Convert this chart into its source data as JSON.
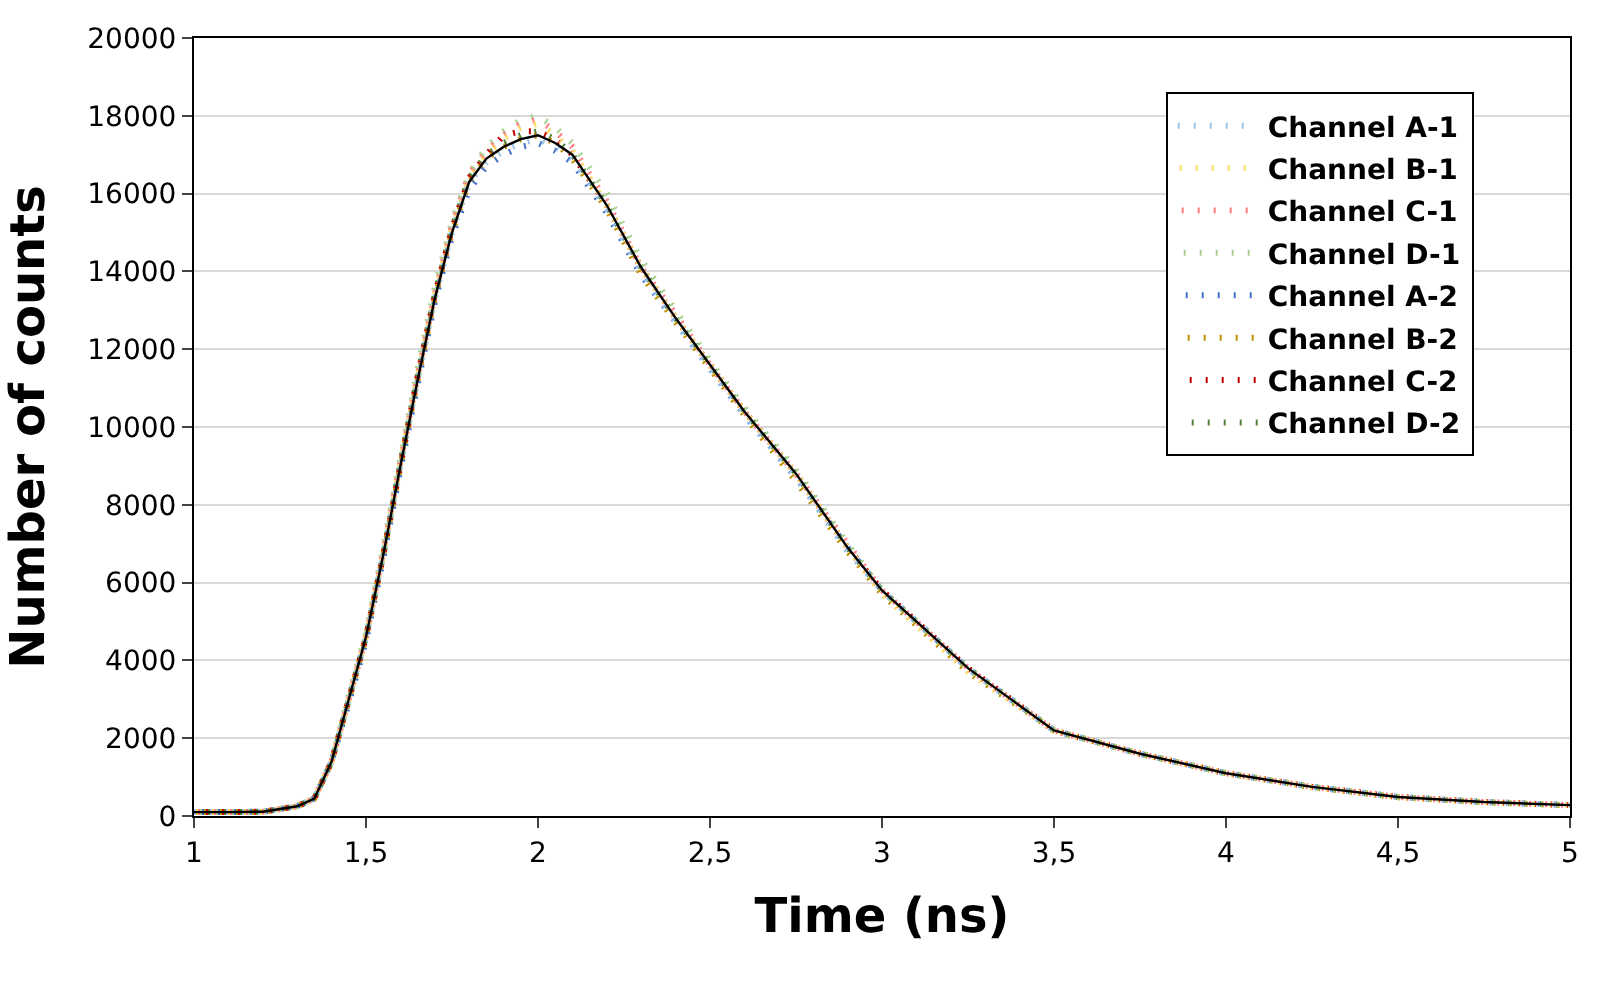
{
  "chart_data": {
    "type": "line",
    "xlabel": "Time (ns)",
    "ylabel": "Number of counts",
    "x": [
      1.0,
      1.1,
      1.2,
      1.3,
      1.35,
      1.4,
      1.45,
      1.5,
      1.55,
      1.6,
      1.65,
      1.7,
      1.75,
      1.8,
      1.85,
      1.9,
      1.95,
      2.0,
      2.05,
      2.1,
      2.2,
      2.3,
      2.4,
      2.5,
      2.6,
      2.75,
      2.9,
      3.0,
      3.25,
      3.5,
      3.75,
      4.0,
      4.25,
      4.5,
      4.75,
      5.0
    ],
    "xlim": [
      1,
      5
    ],
    "xticks": [
      1,
      {
        "value": 1.5,
        "label": "1,5"
      },
      2,
      {
        "value": 2.5,
        "label": "2,5"
      },
      3,
      {
        "value": 3.5,
        "label": "3,5"
      },
      4,
      {
        "value": 4.5,
        "label": "4,5"
      },
      5
    ],
    "ylim": [
      0,
      20000
    ],
    "yticks": [
      0,
      2000,
      4000,
      6000,
      8000,
      10000,
      12000,
      14000,
      16000,
      18000,
      20000
    ],
    "grid": "y",
    "legend": "top right",
    "marker": "none",
    "series": [
      {
        "name": "Channel A-1",
        "color": "#9dc3e6",
        "line_style": "dotted",
        "values": [
          100,
          100,
          110,
          250,
          450,
          1400,
          3000,
          4600,
          6700,
          9000,
          11200,
          13300,
          15000,
          16300,
          16800,
          17100,
          17300,
          17400,
          17200,
          16900,
          15600,
          14000,
          12700,
          11500,
          10300,
          8700,
          6800,
          5800,
          3800,
          2200,
          1600,
          1100,
          750,
          490,
          360,
          280
        ]
      },
      {
        "name": "Channel B-1",
        "color": "#ffd966",
        "line_style": "dotted",
        "values": [
          100,
          100,
          110,
          250,
          450,
          1400,
          3000,
          4600,
          6700,
          9100,
          11300,
          13400,
          15100,
          16400,
          17000,
          17400,
          17700,
          17800,
          17500,
          17100,
          15700,
          14100,
          12800,
          11600,
          10400,
          8800,
          6900,
          5700,
          3700,
          2200,
          1600,
          1100,
          740,
          480,
          350,
          270
        ]
      },
      {
        "name": "Channel C-1",
        "color": "#ff7c80",
        "line_style": "dotted",
        "values": [
          100,
          100,
          110,
          250,
          450,
          1400,
          3000,
          4600,
          6800,
          9100,
          11300,
          13400,
          15200,
          16500,
          17100,
          17500,
          17800,
          17900,
          17600,
          17200,
          15800,
          14100,
          12900,
          11600,
          10400,
          8800,
          7000,
          5800,
          3800,
          2200,
          1600,
          1100,
          750,
          490,
          360,
          280
        ]
      },
      {
        "name": "Channel D-1",
        "color": "#a9d18e",
        "line_style": "dotted",
        "values": [
          100,
          100,
          110,
          250,
          450,
          1400,
          3100,
          4700,
          6900,
          9200,
          11500,
          13600,
          15300,
          16500,
          17200,
          17600,
          17900,
          18000,
          17700,
          17300,
          16000,
          14300,
          13000,
          11700,
          10500,
          8900,
          7000,
          5800,
          3800,
          2200,
          1600,
          1100,
          750,
          490,
          360,
          280
        ]
      },
      {
        "name": "Channel A-2",
        "color": "#4472c4",
        "line_style": "dotted",
        "values": [
          100,
          100,
          110,
          250,
          450,
          1400,
          2900,
          4500,
          6600,
          8900,
          11100,
          13200,
          14900,
          16100,
          16700,
          17000,
          17200,
          17300,
          17100,
          16800,
          15500,
          13900,
          12700,
          11500,
          10300,
          8700,
          6900,
          5800,
          3800,
          2200,
          1600,
          1100,
          750,
          490,
          360,
          280
        ]
      },
      {
        "name": "Channel B-2",
        "color": "#bf9000",
        "line_style": "dotted",
        "values": [
          100,
          100,
          110,
          250,
          450,
          1400,
          3000,
          4600,
          6700,
          9000,
          11200,
          13300,
          15000,
          16300,
          16900,
          17200,
          17400,
          17500,
          17300,
          16900,
          15600,
          13900,
          12700,
          11500,
          10300,
          8600,
          6800,
          5700,
          3700,
          2200,
          1600,
          1100,
          740,
          480,
          350,
          270
        ]
      },
      {
        "name": "Channel C-2",
        "color": "#c00000",
        "line_style": "dotted",
        "values": [
          100,
          100,
          110,
          250,
          450,
          1400,
          3000,
          4600,
          6700,
          9000,
          11300,
          13400,
          15100,
          16400,
          17000,
          17500,
          17600,
          17600,
          17400,
          17000,
          15700,
          14100,
          12800,
          11600,
          10400,
          8800,
          6900,
          5800,
          3800,
          2200,
          1600,
          1100,
          750,
          490,
          360,
          280
        ]
      },
      {
        "name": "Channel D-2",
        "color": "#548235",
        "line_style": "dotted",
        "values": [
          100,
          100,
          110,
          250,
          450,
          1400,
          3000,
          4600,
          6700,
          9100,
          11300,
          13400,
          15100,
          16400,
          17000,
          17300,
          17500,
          17600,
          17400,
          17000,
          15700,
          14100,
          12800,
          11600,
          10400,
          8800,
          6900,
          5800,
          3800,
          2200,
          1600,
          1100,
          750,
          490,
          360,
          280
        ]
      },
      {
        "color": "#000000",
        "line_style": "solid",
        "values": [
          100,
          100,
          110,
          250,
          450,
          1400,
          3000,
          4600,
          6700,
          9000,
          11200,
          13300,
          15000,
          16300,
          16900,
          17200,
          17400,
          17500,
          17300,
          17000,
          15700,
          14100,
          12800,
          11600,
          10400,
          8800,
          6900,
          5800,
          3800,
          2200,
          1600,
          1100,
          750,
          490,
          360,
          280
        ]
      }
    ]
  }
}
